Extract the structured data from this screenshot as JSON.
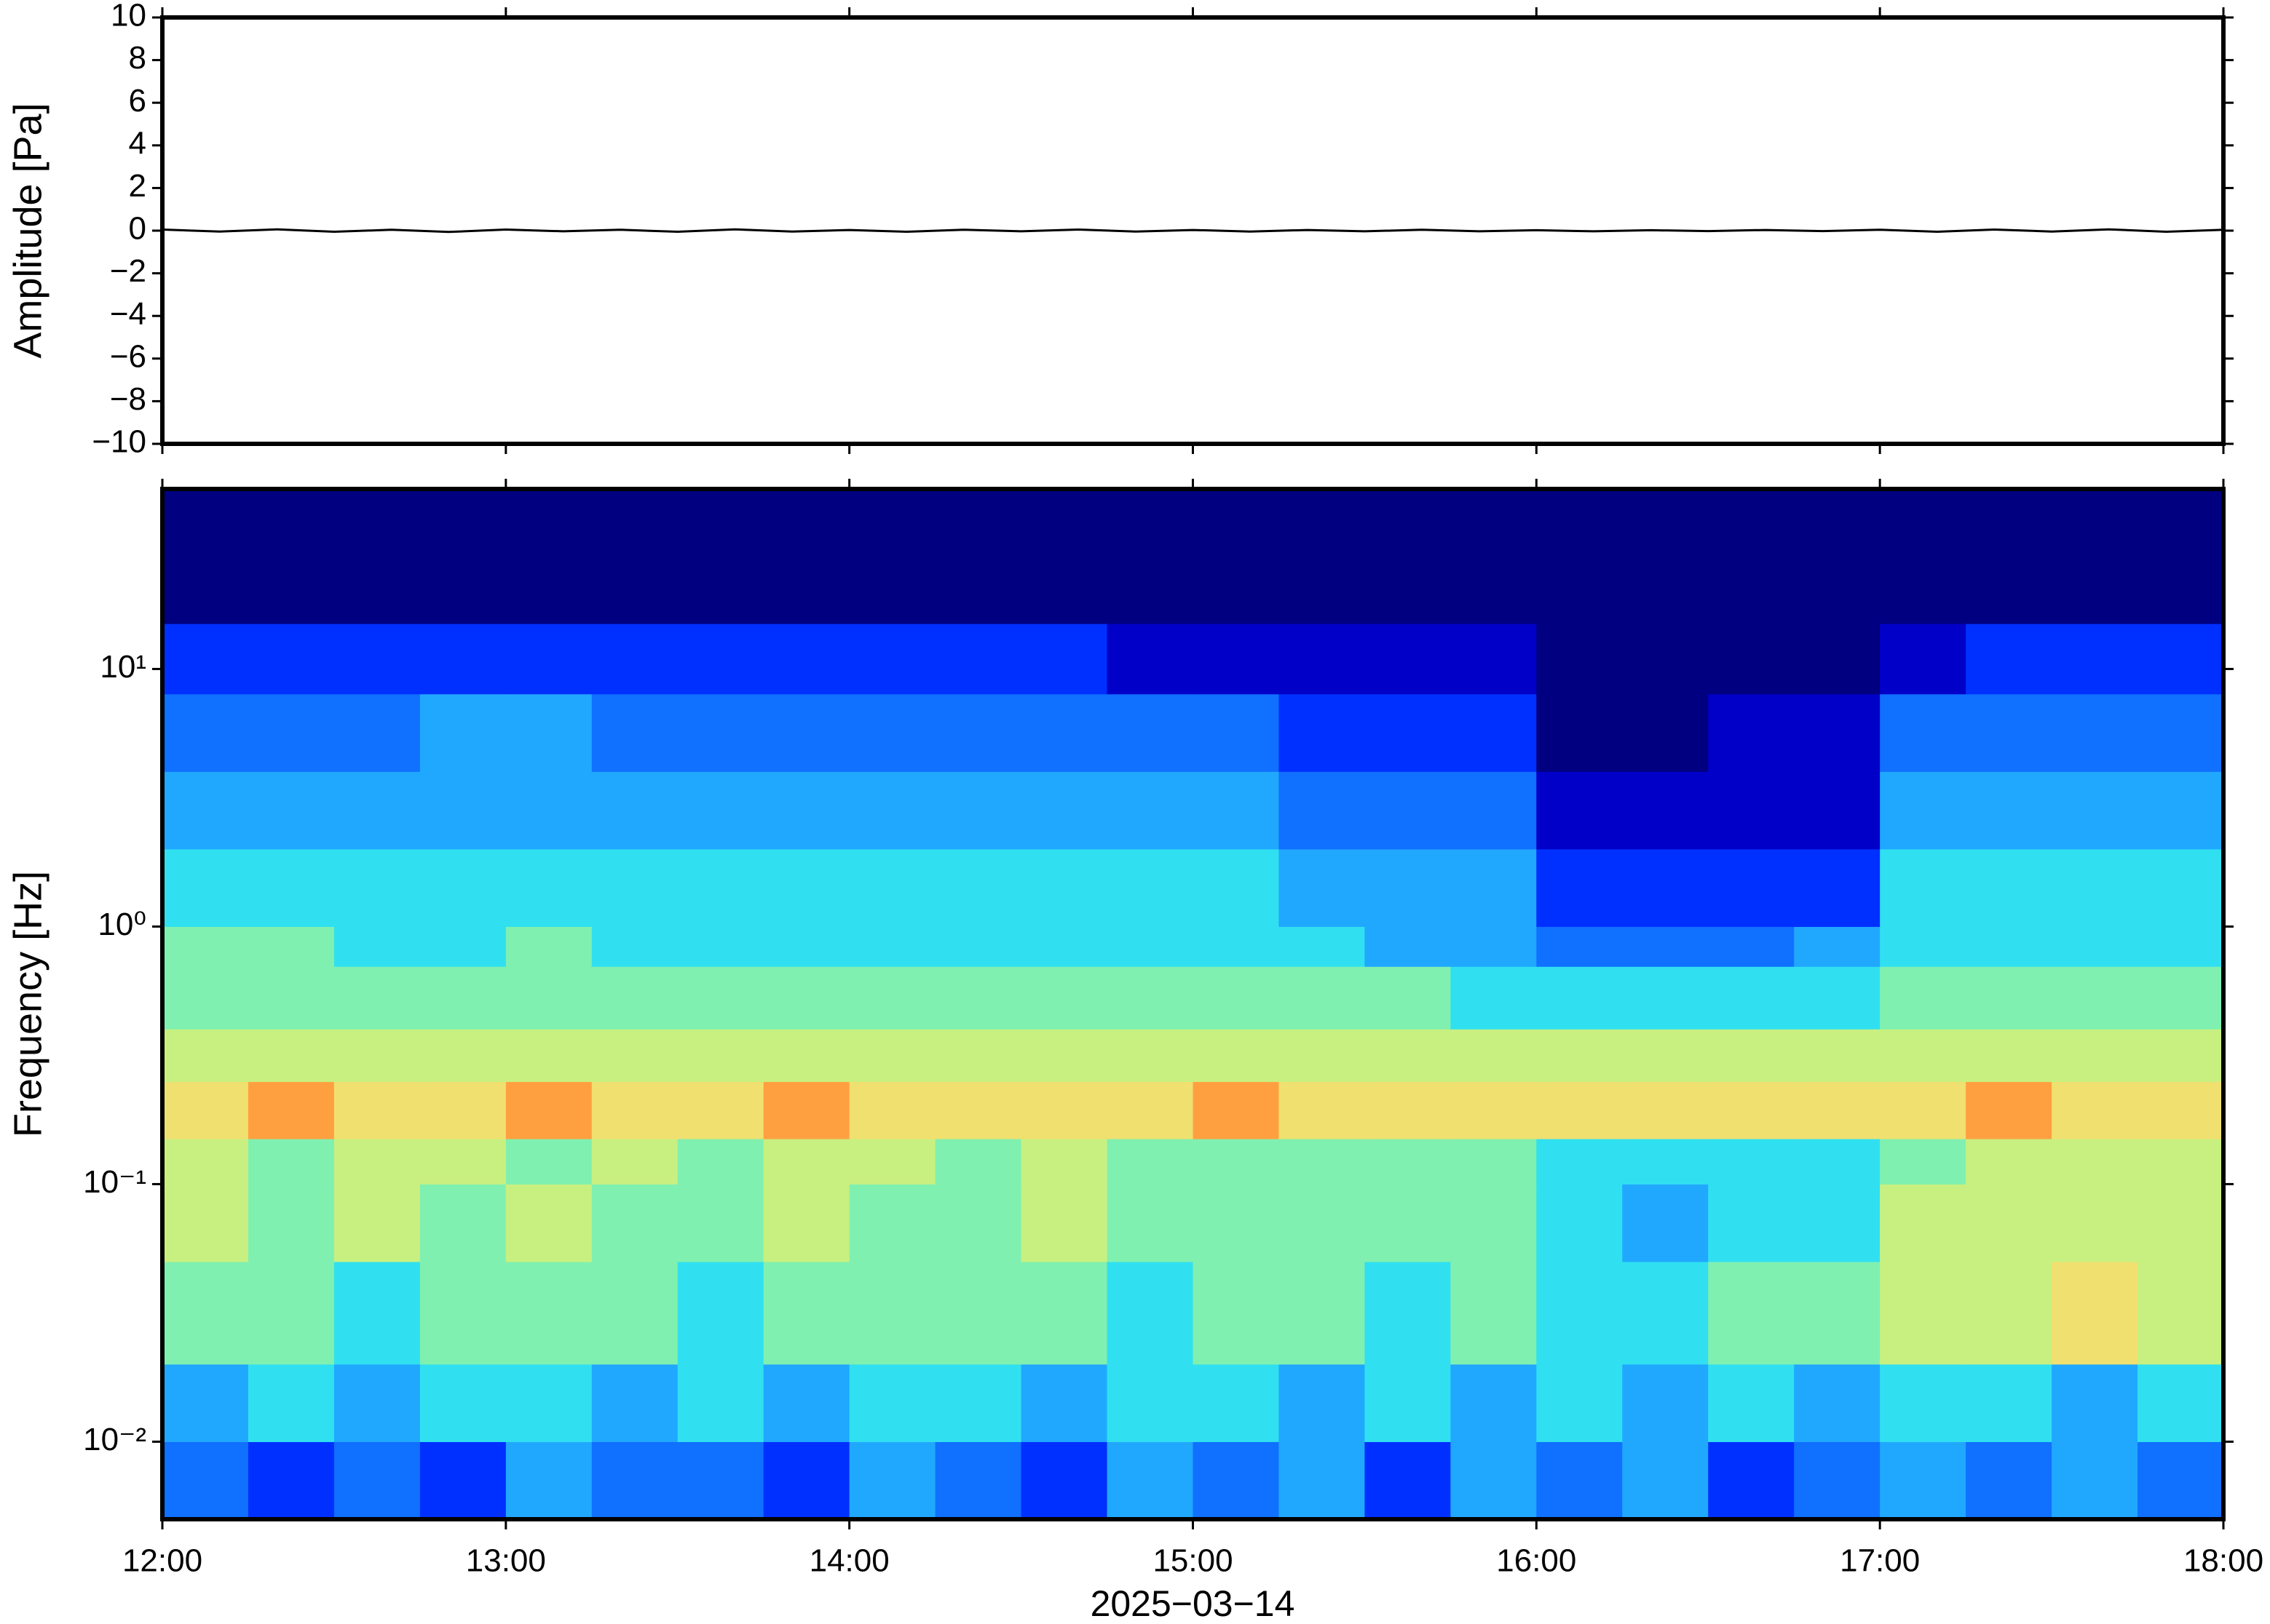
{
  "chart_data": [
    {
      "type": "line",
      "ylabel": "Amplitude [Pa]",
      "xlim": [
        "12:00",
        "18:00"
      ],
      "ylim": [
        -10,
        10
      ],
      "yticks": [
        {
          "value": -10,
          "label": "−10"
        },
        {
          "value": -8,
          "label": "−8"
        },
        {
          "value": -6,
          "label": "−6"
        },
        {
          "value": -4,
          "label": "−4"
        },
        {
          "value": -2,
          "label": "−2"
        },
        0,
        2,
        4,
        6,
        8,
        10
      ],
      "x": [
        "12:00",
        "12:10",
        "12:20",
        "12:30",
        "12:40",
        "12:50",
        "13:00",
        "13:10",
        "13:20",
        "13:30",
        "13:40",
        "13:50",
        "14:00",
        "14:10",
        "14:20",
        "14:30",
        "14:40",
        "14:50",
        "15:00",
        "15:10",
        "15:20",
        "15:30",
        "15:40",
        "15:50",
        "16:00",
        "16:10",
        "16:20",
        "16:30",
        "16:40",
        "16:50",
        "17:00",
        "17:10",
        "17:20",
        "17:30",
        "17:40",
        "17:50",
        "18:00"
      ],
      "values": [
        0.05,
        -0.04,
        0.06,
        -0.05,
        0.04,
        -0.06,
        0.05,
        -0.03,
        0.04,
        -0.05,
        0.06,
        -0.04,
        0.03,
        -0.05,
        0.04,
        -0.03,
        0.05,
        -0.04,
        0.03,
        -0.04,
        0.03,
        -0.03,
        0.04,
        -0.03,
        0.02,
        -0.03,
        0.02,
        -0.02,
        0.03,
        -0.02,
        0.04,
        -0.05,
        0.05,
        -0.04,
        0.06,
        -0.05,
        0.04
      ],
      "color": "#000000"
    },
    {
      "type": "heatmap",
      "ylabel": "Frequency [Hz]",
      "xlabel": "2025−03−14",
      "xlim": [
        "12:00",
        "18:00"
      ],
      "xticks": [
        "12:00",
        "13:00",
        "14:00",
        "15:00",
        "16:00",
        "17:00",
        "18:00"
      ],
      "ylim": [
        0.005,
        50
      ],
      "log_y": true,
      "yticks": [
        {
          "value": 0.01,
          "label": "10⁻²"
        },
        {
          "value": 0.1,
          "label": "10⁻¹"
        },
        {
          "value": 1,
          "label": "10⁰"
        },
        {
          "value": 10,
          "label": "10¹"
        }
      ],
      "x": [
        "12:00",
        "12:15",
        "12:30",
        "12:45",
        "13:00",
        "13:15",
        "13:30",
        "13:45",
        "14:00",
        "14:15",
        "14:30",
        "14:45",
        "15:00",
        "15:15",
        "15:30",
        "15:45",
        "16:00",
        "16:15",
        "16:30",
        "16:45",
        "17:00",
        "17:15",
        "17:30",
        "17:45"
      ],
      "y_edges": [
        0.005,
        0.01,
        0.02,
        0.05,
        0.1,
        0.15,
        0.25,
        0.4,
        0.7,
        1,
        2,
        4,
        8,
        15,
        50
      ],
      "colormap": [
        "#000080",
        "#0000c8",
        "#0030ff",
        "#1070ff",
        "#20a8ff",
        "#30e0f0",
        "#80f0b0",
        "#c8f080",
        "#f0e070",
        "#ffa040",
        "#ff4020"
      ],
      "z": [
        [
          3,
          2,
          3,
          2,
          4,
          3,
          3,
          2,
          4,
          3,
          2,
          4,
          3,
          4,
          2,
          4,
          3,
          4,
          2,
          3,
          4,
          3,
          4,
          3
        ],
        [
          4,
          5,
          4,
          5,
          5,
          4,
          5,
          4,
          5,
          5,
          4,
          5,
          5,
          4,
          5,
          4,
          5,
          4,
          5,
          4,
          5,
          5,
          4,
          5
        ],
        [
          6,
          6,
          5,
          6,
          6,
          6,
          5,
          6,
          6,
          6,
          6,
          5,
          6,
          6,
          5,
          6,
          5,
          5,
          6,
          6,
          7,
          7,
          8,
          7
        ],
        [
          7,
          6,
          7,
          6,
          7,
          6,
          6,
          7,
          6,
          6,
          7,
          6,
          6,
          6,
          6,
          6,
          5,
          4,
          5,
          5,
          7,
          7,
          7,
          7
        ],
        [
          7,
          6,
          7,
          7,
          6,
          7,
          6,
          7,
          7,
          6,
          7,
          6,
          6,
          6,
          6,
          6,
          5,
          5,
          5,
          5,
          6,
          7,
          7,
          7
        ],
        [
          8,
          9,
          8,
          8,
          9,
          8,
          8,
          9,
          8,
          8,
          8,
          8,
          9,
          8,
          8,
          8,
          8,
          8,
          8,
          8,
          8,
          9,
          8,
          8
        ],
        [
          7,
          7,
          7,
          7,
          7,
          7,
          7,
          7,
          7,
          7,
          7,
          7,
          7,
          7,
          7,
          7,
          7,
          7,
          7,
          7,
          7,
          7,
          7,
          7
        ],
        [
          6,
          6,
          6,
          6,
          6,
          6,
          6,
          6,
          6,
          6,
          6,
          6,
          6,
          6,
          6,
          5,
          5,
          5,
          5,
          5,
          6,
          6,
          6,
          6
        ],
        [
          6,
          6,
          5,
          5,
          6,
          5,
          5,
          5,
          5,
          5,
          5,
          5,
          5,
          5,
          4,
          4,
          3,
          3,
          3,
          4,
          5,
          5,
          5,
          5
        ],
        [
          5,
          5,
          5,
          5,
          5,
          5,
          5,
          5,
          5,
          5,
          5,
          5,
          5,
          4,
          4,
          4,
          2,
          2,
          2,
          2,
          5,
          5,
          5,
          5
        ],
        [
          4,
          4,
          4,
          4,
          4,
          4,
          4,
          4,
          4,
          4,
          4,
          4,
          4,
          3,
          3,
          3,
          1,
          1,
          1,
          1,
          4,
          4,
          4,
          4
        ],
        [
          3,
          3,
          3,
          4,
          4,
          3,
          3,
          3,
          3,
          3,
          3,
          3,
          3,
          2,
          2,
          2,
          0,
          0,
          1,
          1,
          3,
          3,
          3,
          3
        ],
        [
          2,
          2,
          2,
          2,
          2,
          2,
          2,
          2,
          2,
          2,
          2,
          1,
          1,
          1,
          1,
          1,
          0,
          0,
          0,
          0,
          1,
          2,
          2,
          2
        ],
        [
          0,
          0,
          0,
          0,
          0,
          0,
          0,
          0,
          0,
          0,
          0,
          0,
          0,
          0,
          0,
          0,
          0,
          0,
          0,
          0,
          0,
          0,
          0,
          0
        ]
      ]
    }
  ]
}
